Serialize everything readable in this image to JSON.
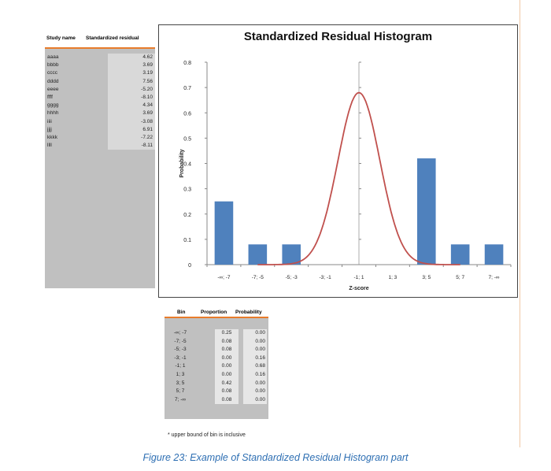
{
  "left_table": {
    "header_name": "Study name",
    "header_value": "Standardized residual",
    "rows": [
      {
        "name": "aaaa",
        "value": "4.62"
      },
      {
        "name": "bbbb",
        "value": "3.69"
      },
      {
        "name": "cccc",
        "value": "3.19"
      },
      {
        "name": "dddd",
        "value": "7.56"
      },
      {
        "name": "eeee",
        "value": "-5.20"
      },
      {
        "name": "ffff",
        "value": "-8.10"
      },
      {
        "name": "gggg",
        "value": "4.34"
      },
      {
        "name": "hhhh",
        "value": "3.69"
      },
      {
        "name": "iiii",
        "value": "-3.08"
      },
      {
        "name": "jjjj",
        "value": "6.91"
      },
      {
        "name": "kkkk",
        "value": "-7.22"
      },
      {
        "name": "llll",
        "value": "-8.11"
      }
    ]
  },
  "chart_data": {
    "type": "bar",
    "title": "Standardized Residual Histogram",
    "xlabel": "Z-score",
    "ylabel": "Probability",
    "ylim": [
      0,
      0.8
    ],
    "yticks": [
      "0",
      "0.1",
      "0.2",
      "0.3",
      "0.4",
      "0.5",
      "0.6",
      "0.7",
      "0.8"
    ],
    "categories": [
      "-∞; -7",
      "-7; -5",
      "-5; -3",
      "-3; -1",
      "-1; 1",
      "1; 3",
      "3; 5",
      "5; 7",
      "7; -∞"
    ],
    "series": [
      {
        "kind": "bar",
        "values": [
          0.25,
          0.08,
          0.08,
          0.0,
          0.0,
          0.0,
          0.42,
          0.08,
          0.08
        ],
        "color": "#4f81bd"
      },
      {
        "kind": "curve",
        "values": [
          0.0,
          0.0,
          0.0,
          0.16,
          0.68,
          0.16,
          0.0,
          0.0,
          0.0
        ],
        "color": "#c0504d"
      }
    ],
    "grid": false,
    "legend": "none"
  },
  "bin_table": {
    "headers": [
      "Bin",
      "Proportion",
      "Probability"
    ],
    "rows": [
      {
        "bin": "-∞; -7",
        "proportion": "0.25",
        "probability": "0.00"
      },
      {
        "bin": "-7; -5",
        "proportion": "0.08",
        "probability": "0.00"
      },
      {
        "bin": "-5; -3",
        "proportion": "0.08",
        "probability": "0.00"
      },
      {
        "bin": "-3; -1",
        "proportion": "0.00",
        "probability": "0.16"
      },
      {
        "bin": "-1; 1",
        "proportion": "0.00",
        "probability": "0.68"
      },
      {
        "bin": "1; 3",
        "proportion": "0.00",
        "probability": "0.16"
      },
      {
        "bin": "3; 5",
        "proportion": "0.42",
        "probability": "0.00"
      },
      {
        "bin": "5; 7",
        "proportion": "0.08",
        "probability": "0.00"
      },
      {
        "bin": "7; -∞",
        "proportion": "0.08",
        "probability": "0.00"
      }
    ]
  },
  "footnote": "* upper bound of bin is inclusive",
  "caption": "Figure 23: Example of Standardized Residual Histogram part"
}
